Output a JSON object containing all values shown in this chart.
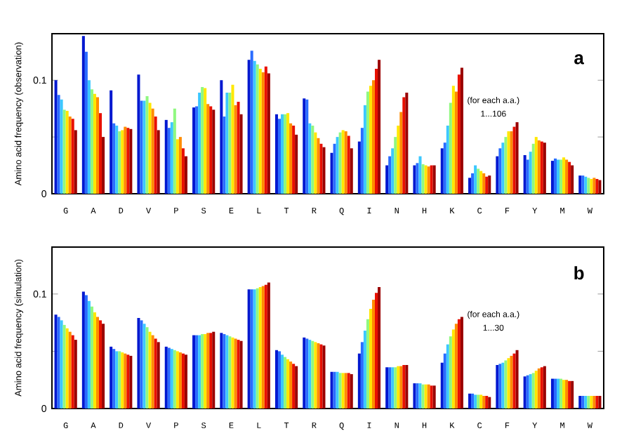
{
  "chart_data": [
    {
      "type": "bar",
      "ylabel": "Amino acid frequency (observation)",
      "categories": [
        "G",
        "A",
        "D",
        "V",
        "P",
        "S",
        "E",
        "L",
        "T",
        "R",
        "Q",
        "I",
        "N",
        "H",
        "K",
        "C",
        "F",
        "Y",
        "M",
        "W"
      ],
      "ylim": [
        0,
        0.141
      ],
      "yticks": [
        0,
        {
          "value": 0.05,
          "label": null
        },
        0.1
      ],
      "annotations": [
        "a",
        "(for each a.a.)",
        "1...106"
      ],
      "series": [
        {
          "color": "#0018d0",
          "values": [
            0.1,
            0.139,
            0.091,
            0.105,
            0.065,
            0.076,
            0.1,
            0.118,
            0.07,
            0.084,
            0.036,
            0.046,
            0.025,
            0.025,
            0.04,
            0.014,
            0.033,
            0.034,
            0.029,
            0.016
          ]
        },
        {
          "color": "#2a6cff",
          "values": [
            0.087,
            0.125,
            0.062,
            0.082,
            0.058,
            0.077,
            0.068,
            0.126,
            0.066,
            0.083,
            0.044,
            0.058,
            0.033,
            0.027,
            0.045,
            0.018,
            0.04,
            0.03,
            0.031,
            0.016
          ]
        },
        {
          "color": "#3cc8ff",
          "values": [
            0.083,
            0.1,
            0.06,
            0.082,
            0.063,
            0.089,
            0.089,
            0.117,
            0.07,
            0.062,
            0.05,
            0.078,
            0.04,
            0.033,
            0.06,
            0.025,
            0.045,
            0.037,
            0.03,
            0.015
          ]
        },
        {
          "color": "#90f880",
          "values": [
            0.074,
            0.092,
            0.055,
            0.086,
            0.075,
            0.094,
            0.089,
            0.114,
            0.07,
            0.06,
            0.054,
            0.09,
            0.05,
            0.026,
            0.08,
            0.022,
            0.05,
            0.044,
            0.03,
            0.014
          ]
        },
        {
          "color": "#ffe800",
          "values": [
            0.073,
            0.088,
            0.056,
            0.08,
            0.048,
            0.093,
            0.096,
            0.11,
            0.071,
            0.054,
            0.056,
            0.095,
            0.06,
            0.025,
            0.095,
            0.02,
            0.055,
            0.05,
            0.032,
            0.013
          ]
        },
        {
          "color": "#ff8c00",
          "values": [
            0.068,
            0.085,
            0.059,
            0.075,
            0.05,
            0.079,
            0.078,
            0.107,
            0.062,
            0.049,
            0.055,
            0.1,
            0.072,
            0.024,
            0.09,
            0.018,
            0.055,
            0.047,
            0.03,
            0.014
          ]
        },
        {
          "color": "#e81000",
          "values": [
            0.066,
            0.071,
            0.058,
            0.068,
            0.04,
            0.077,
            0.081,
            0.112,
            0.06,
            0.044,
            0.051,
            0.11,
            0.085,
            0.025,
            0.105,
            0.015,
            0.059,
            0.046,
            0.028,
            0.013
          ]
        },
        {
          "color": "#9a0000",
          "values": [
            0.056,
            0.05,
            0.057,
            0.056,
            0.033,
            0.074,
            0.07,
            0.106,
            0.052,
            0.041,
            0.04,
            0.118,
            0.089,
            0.025,
            0.111,
            0.016,
            0.063,
            0.045,
            0.025,
            0.012
          ]
        }
      ]
    },
    {
      "type": "bar",
      "ylabel": "Amino acid frequency (simulation)",
      "categories": [
        "G",
        "A",
        "D",
        "V",
        "P",
        "S",
        "E",
        "L",
        "T",
        "R",
        "Q",
        "I",
        "N",
        "H",
        "K",
        "C",
        "F",
        "Y",
        "M",
        "W"
      ],
      "ylim": [
        0,
        0.141
      ],
      "yticks": [
        0,
        {
          "value": 0.05,
          "label": null
        },
        0.1
      ],
      "annotations": [
        "b",
        "(for each a.a.)",
        "1...30"
      ],
      "series": [
        {
          "color": "#0018d0",
          "values": [
            0.082,
            0.102,
            0.054,
            0.079,
            0.054,
            0.064,
            0.066,
            0.104,
            0.051,
            0.062,
            0.032,
            0.048,
            0.036,
            0.022,
            0.04,
            0.013,
            0.038,
            0.028,
            0.026,
            0.011
          ]
        },
        {
          "color": "#2a6cff",
          "values": [
            0.08,
            0.099,
            0.052,
            0.077,
            0.053,
            0.064,
            0.065,
            0.104,
            0.05,
            0.061,
            0.032,
            0.058,
            0.036,
            0.022,
            0.048,
            0.013,
            0.039,
            0.029,
            0.026,
            0.011
          ]
        },
        {
          "color": "#3cc8ff",
          "values": [
            0.077,
            0.094,
            0.05,
            0.074,
            0.052,
            0.064,
            0.064,
            0.104,
            0.047,
            0.06,
            0.032,
            0.068,
            0.036,
            0.022,
            0.056,
            0.012,
            0.04,
            0.03,
            0.026,
            0.011
          ]
        },
        {
          "color": "#90f880",
          "values": [
            0.073,
            0.089,
            0.05,
            0.071,
            0.051,
            0.065,
            0.063,
            0.105,
            0.045,
            0.059,
            0.031,
            0.078,
            0.036,
            0.021,
            0.063,
            0.012,
            0.042,
            0.031,
            0.026,
            0.011
          ]
        },
        {
          "color": "#ffe800",
          "values": [
            0.07,
            0.084,
            0.049,
            0.067,
            0.05,
            0.065,
            0.062,
            0.106,
            0.043,
            0.058,
            0.031,
            0.087,
            0.037,
            0.021,
            0.069,
            0.012,
            0.044,
            0.033,
            0.025,
            0.011
          ]
        },
        {
          "color": "#ff8c00",
          "values": [
            0.067,
            0.08,
            0.048,
            0.064,
            0.049,
            0.066,
            0.061,
            0.107,
            0.041,
            0.057,
            0.031,
            0.095,
            0.037,
            0.021,
            0.074,
            0.011,
            0.046,
            0.035,
            0.025,
            0.011
          ]
        },
        {
          "color": "#e81000",
          "values": [
            0.064,
            0.077,
            0.047,
            0.061,
            0.048,
            0.066,
            0.06,
            0.108,
            0.039,
            0.056,
            0.031,
            0.101,
            0.038,
            0.02,
            0.078,
            0.011,
            0.048,
            0.036,
            0.024,
            0.011
          ]
        },
        {
          "color": "#9a0000",
          "values": [
            0.06,
            0.074,
            0.046,
            0.058,
            0.047,
            0.067,
            0.059,
            0.11,
            0.037,
            0.055,
            0.03,
            0.106,
            0.038,
            0.02,
            0.08,
            0.01,
            0.051,
            0.037,
            0.024,
            0.011
          ]
        }
      ]
    }
  ]
}
